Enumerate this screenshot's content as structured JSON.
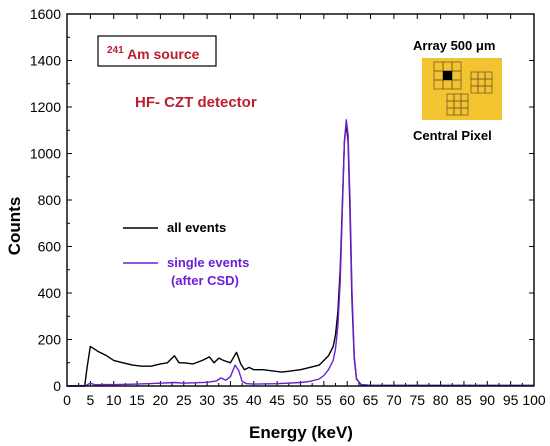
{
  "chart_data": {
    "type": "line",
    "xlabel": "Energy (keV)",
    "ylabel": "Counts",
    "xlim": [
      0,
      100
    ],
    "ylim": [
      0,
      1600
    ],
    "xticks": [
      0,
      5,
      10,
      15,
      20,
      25,
      30,
      35,
      40,
      45,
      50,
      55,
      60,
      65,
      70,
      75,
      80,
      85,
      90,
      95,
      100
    ],
    "yticks": [
      0,
      200,
      400,
      600,
      800,
      1000,
      1200,
      1400,
      1600
    ],
    "grid": false,
    "legend_position": "middle-left",
    "annotations": {
      "source_superscript": "241",
      "source_label": "Am source",
      "detector": "HF- CZT detector",
      "array_label": "Array  500 μm",
      "pixel_label": "Central Pixel"
    },
    "series": [
      {
        "name": "all events",
        "color": "#000000",
        "x": [
          0,
          3.8,
          4.3,
          5,
          5.8,
          6.5,
          7.5,
          8.5,
          10,
          12,
          14,
          16,
          18,
          20,
          21.5,
          23,
          24,
          25,
          27,
          29,
          30.5,
          31.5,
          32.5,
          33.5,
          35,
          36.3,
          37.2,
          38,
          39,
          40,
          42,
          44,
          46,
          48,
          50,
          52,
          54,
          55,
          56,
          57,
          57.5,
          58,
          58.5,
          59,
          59.4,
          59.8,
          60.2,
          60.6,
          61,
          61.5,
          62,
          63,
          65,
          70,
          80,
          90,
          100
        ],
        "y": [
          0,
          0,
          80,
          170,
          160,
          150,
          140,
          130,
          110,
          100,
          90,
          85,
          85,
          95,
          100,
          130,
          100,
          100,
          95,
          110,
          125,
          100,
          120,
          110,
          100,
          145,
          95,
          70,
          80,
          70,
          70,
          65,
          60,
          65,
          70,
          80,
          90,
          110,
          130,
          170,
          220,
          320,
          500,
          800,
          1050,
          1130,
          1050,
          750,
          380,
          120,
          30,
          5,
          3,
          2,
          2,
          2,
          2
        ]
      },
      {
        "name": "single events\n(after CSD)",
        "color": "#6a1fd6",
        "x": [
          0,
          4,
          5,
          6,
          8,
          10,
          15,
          20,
          23,
          25,
          28,
          30,
          32,
          33,
          34,
          35,
          36,
          36.8,
          37.5,
          38.5,
          40,
          45,
          50,
          52,
          54,
          55,
          56,
          57,
          57.5,
          58,
          58.5,
          59,
          59.4,
          59.8,
          60.2,
          60.6,
          61,
          61.5,
          62,
          63,
          65,
          70,
          80,
          90,
          100
        ],
        "y": [
          0,
          2,
          12,
          5,
          6,
          6,
          8,
          12,
          15,
          12,
          14,
          16,
          22,
          35,
          25,
          40,
          90,
          65,
          20,
          10,
          8,
          10,
          15,
          20,
          30,
          45,
          70,
          110,
          160,
          260,
          450,
          780,
          1050,
          1145,
          1080,
          800,
          420,
          130,
          30,
          6,
          3,
          2,
          2,
          2,
          2
        ]
      }
    ]
  }
}
